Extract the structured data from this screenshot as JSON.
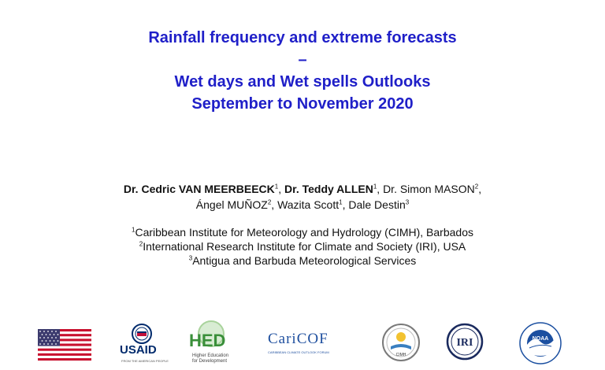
{
  "title": {
    "line1": "Rainfall frequency and extreme forecasts",
    "line2": "–",
    "line3": "Wet days and Wet spells Outlooks",
    "line4": "September to November 2020"
  },
  "authors": [
    {
      "name": "Dr. Cedric VAN MEERBEECK",
      "sup": "1",
      "bold": true,
      "sep": ", "
    },
    {
      "name": "Dr. Teddy ALLEN",
      "sup": "1",
      "bold": true,
      "sep": ", "
    },
    {
      "name": "Dr. Simon MASON",
      "sup": "2",
      "bold": false,
      "sep": ","
    },
    {
      "name": "Ángel MUÑOZ",
      "sup": "2",
      "bold": false,
      "sep": ", "
    },
    {
      "name": "Wazita Scott",
      "sup": "1",
      "bold": false,
      "sep": ", "
    },
    {
      "name": "Dale Destin",
      "sup": "3",
      "bold": false,
      "sep": ""
    }
  ],
  "affiliations": [
    {
      "sup": "1",
      "text": "Caribbean Institute for Meteorology and Hydrology (CIMH), Barbados"
    },
    {
      "sup": "2",
      "text": "International Research Institute for Climate and Society (IRI), USA"
    },
    {
      "sup": "3",
      "text": "Antigua and Barbuda Meteorological Services"
    }
  ],
  "logos": {
    "usaid": {
      "name": "USAID",
      "tagline": "FROM THE AMERICAN PEOPLE"
    },
    "hed": {
      "name": "HED",
      "tagline1": "Higher Education",
      "tagline2": "for Development"
    },
    "caricof": {
      "name": "CariCOF",
      "tagline": "CARIBBEAN CLIMATE OUTLOOK FORUM"
    },
    "cimh": {
      "name": "CIMH"
    },
    "iri": {
      "name": "IRI"
    },
    "noaa": {
      "name": "NOAA"
    }
  },
  "colors": {
    "title": "#1f1fc8",
    "usaid_blue": "#002a6c",
    "usaid_red": "#c2113a",
    "hed_green": "#3a8f3a",
    "caricof_blue": "#1d4e9e",
    "noaa_blue": "#1b4fa0"
  }
}
